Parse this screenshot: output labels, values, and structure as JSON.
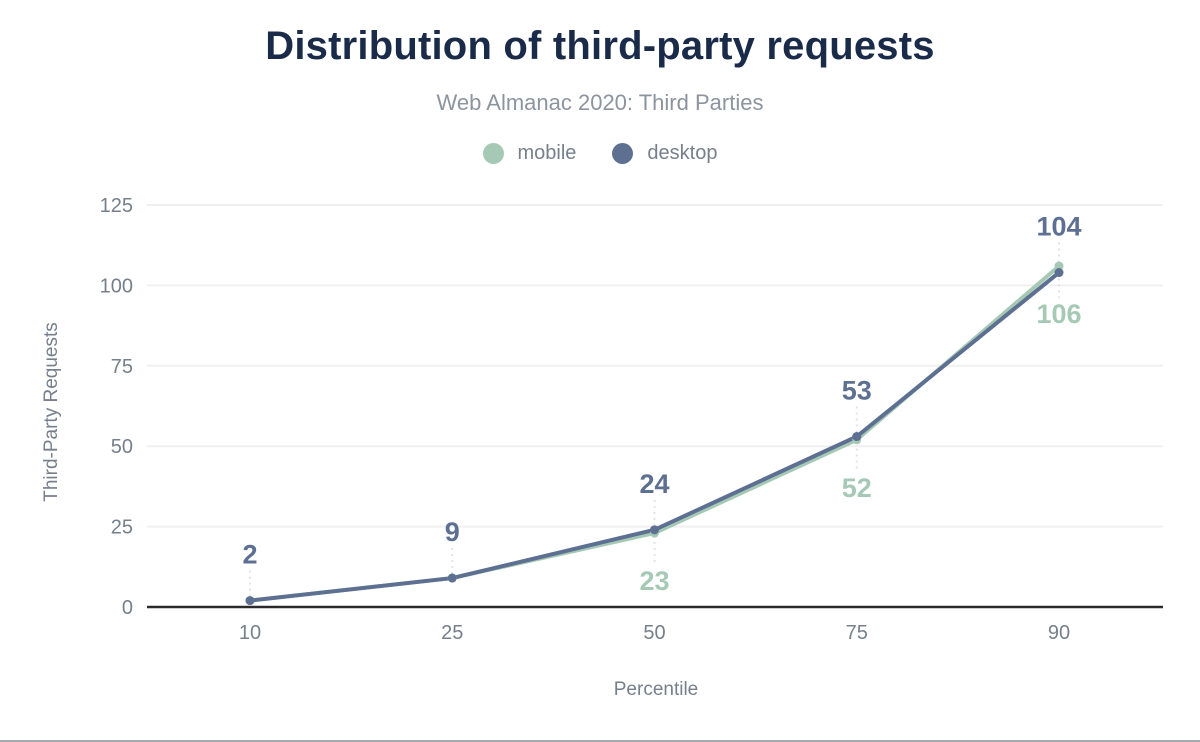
{
  "chart_data": {
    "type": "line",
    "title": "Distribution of third-party requests",
    "subtitle": "Web Almanac 2020: Third Parties",
    "xlabel": "Percentile",
    "ylabel": "Third-Party Requests",
    "x_tick_labels": [
      "10",
      "25",
      "50",
      "75",
      "90"
    ],
    "y_ticks": [
      0,
      25,
      50,
      75,
      100,
      125
    ],
    "ylim": [
      0,
      125
    ],
    "grid": "horizontal",
    "legend_position": "top-center",
    "series": [
      {
        "name": "mobile",
        "color": "#a5c9b5",
        "values": [
          2,
          9,
          23,
          52,
          106
        ],
        "data_labels": [
          null,
          null,
          "23",
          "52",
          "106"
        ],
        "label_side": "below"
      },
      {
        "name": "desktop",
        "color": "#5d7091",
        "values": [
          2,
          9,
          24,
          53,
          104
        ],
        "data_labels": [
          "2",
          "9",
          "24",
          "53",
          "104"
        ],
        "label_side": "above"
      }
    ],
    "colors": {
      "title": "#1a2b49",
      "subtitle": "#8c949e",
      "axis_text": "#76808c",
      "legend_text": "#76808c",
      "gridline": "#f0f0f0",
      "axis_line": "#2b2b2b",
      "label_connector": "#e3e3e3",
      "page_bottom_edge": "#a3aab0"
    }
  }
}
